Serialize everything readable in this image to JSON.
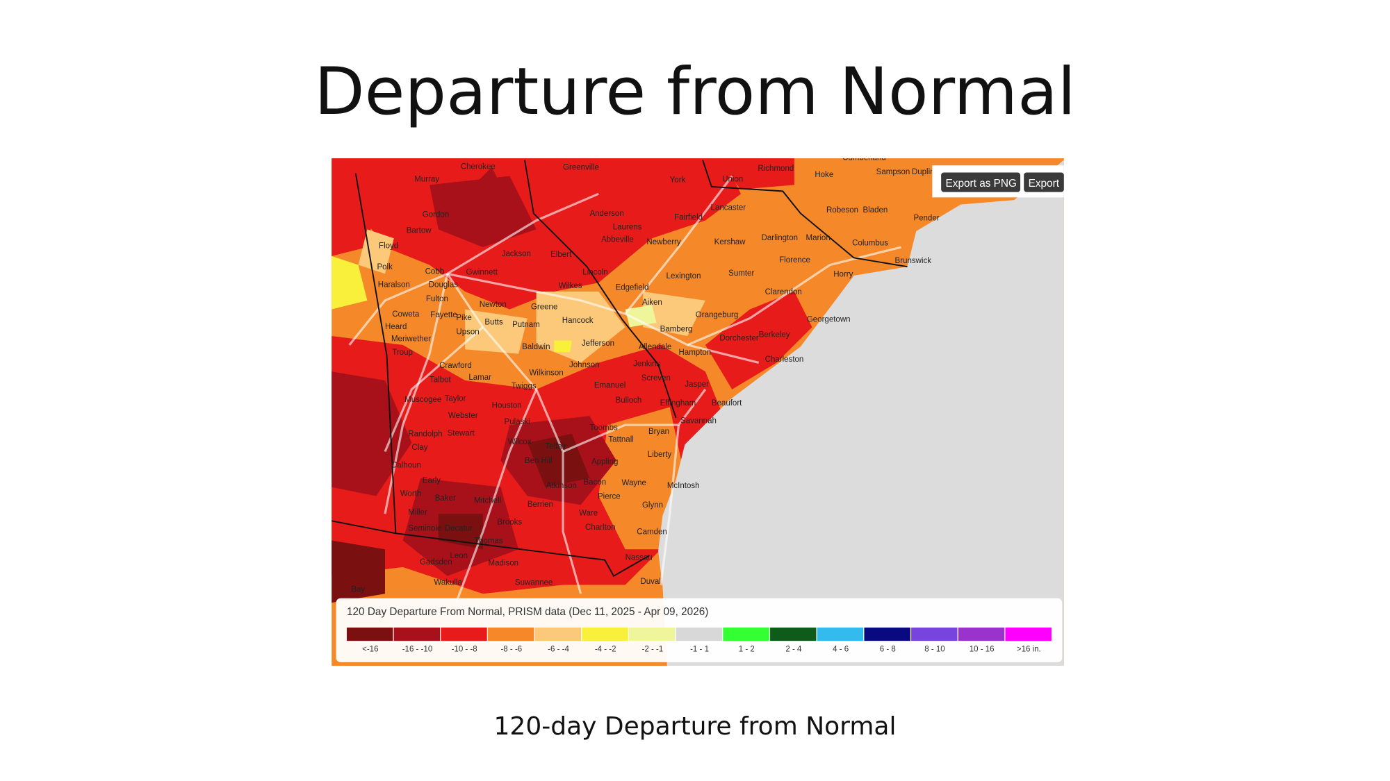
{
  "header": {
    "title": "Departure from Normal"
  },
  "map": {
    "buttons": [
      "Export as PNG",
      "Export"
    ],
    "places": [
      "Cherokee",
      "Greenville",
      "York",
      "Union",
      "Richmond",
      "Cumberland",
      "Hoke",
      "Sampson",
      "Duplin",
      "Murray",
      "Gordon",
      "Floyd",
      "Bartow",
      "Cobb",
      "Polk",
      "Haralson",
      "Gwinnett",
      "Jackson",
      "Anderson",
      "Abbeville",
      "Laurens",
      "Newberry",
      "Fairfield",
      "Lancaster",
      "Kershaw",
      "Darlington",
      "Marion",
      "Robeson",
      "Bladen",
      "Pender",
      "Columbus",
      "Brunswick",
      "Horry",
      "Lexington",
      "Sumter",
      "Florence",
      "Clarendon",
      "Aiken",
      "Edgefield",
      "Orangeburg",
      "Georgetown",
      "Berkeley",
      "Dorchester",
      "Charleston",
      "Bamberg",
      "Allendale",
      "Hampton",
      "Jasper",
      "Beaufort",
      "Savannah",
      "Effingham",
      "Bryan",
      "Liberty",
      "McIntosh",
      "Glynn",
      "Camden",
      "Nassau",
      "Duval",
      "Ware",
      "Charlton",
      "Pierce",
      "Wayne",
      "Appling",
      "Bacon",
      "Tattnall",
      "Toombs",
      "Bulloch",
      "Screven",
      "Jenkins",
      "Emanuel",
      "Johnson",
      "Jefferson",
      "Wilkes",
      "Lincoln",
      "Elbert",
      "Greene",
      "Newton",
      "Butts",
      "Putnam",
      "Hancock",
      "Baldwin",
      "Wilkinson",
      "Twiggs",
      "Houston",
      "Pulaski",
      "Wilcox",
      "Telfair",
      "Ben Hill",
      "Atkinson",
      "Berrien",
      "Brooks",
      "Thomas",
      "Decatur",
      "Seminole",
      "Miller",
      "Baker",
      "Mitchell",
      "Worth",
      "Early",
      "Calhoun",
      "Clay",
      "Randolph",
      "Stewart",
      "Webster",
      "Taylor",
      "Crawford",
      "Upson",
      "Pike",
      "Lamar",
      "Troup",
      "Meriwether",
      "Heard",
      "Coweta",
      "Fayette",
      "Fulton",
      "Douglas",
      "Talbot",
      "Muscogee",
      "Leon",
      "Madison",
      "Gadsden",
      "Wakulla",
      "Suwannee",
      "Bay"
    ],
    "legend": {
      "title": "120 Day Departure From Normal, PRISM data (Dec 11, 2025 - Apr 09, 2026)",
      "items": [
        {
          "label": "<-16",
          "color": "#7a1010"
        },
        {
          "label": "-16 - -10",
          "color": "#a8101a"
        },
        {
          "label": "-10 - -8",
          "color": "#e81b1b"
        },
        {
          "label": "-8 - -6",
          "color": "#f5892a"
        },
        {
          "label": "-6 - -4",
          "color": "#fcc97a"
        },
        {
          "label": "-4 - -2",
          "color": "#f8f03a"
        },
        {
          "label": "-2 - -1",
          "color": "#eef59a"
        },
        {
          "label": "-1 - 1",
          "color": "#d8d8d8"
        },
        {
          "label": "1 - 2",
          "color": "#33ff33"
        },
        {
          "label": "2 - 4",
          "color": "#0f5c1a"
        },
        {
          "label": "4 - 6",
          "color": "#33bbee"
        },
        {
          "label": "6 - 8",
          "color": "#0a0a80"
        },
        {
          "label": "8 - 10",
          "color": "#7744dd"
        },
        {
          "label": "10 - 16",
          "color": "#9933cc"
        },
        {
          "label": ">16 in.",
          "color": "#ff00ff"
        }
      ]
    }
  },
  "caption": "120-day Departure from Normal"
}
